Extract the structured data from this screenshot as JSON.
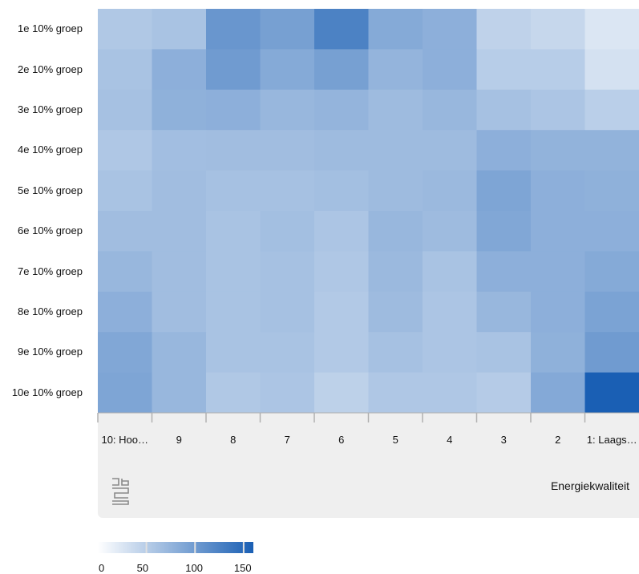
{
  "chart_data": {
    "type": "heatmap",
    "x_categories": [
      "10: Hoo…",
      "9",
      "8",
      "7",
      "6",
      "5",
      "4",
      "3",
      "2",
      "1: Laags…"
    ],
    "y_categories": [
      "1e 10% groep",
      "2e 10% groep",
      "3e 10% groep",
      "4e 10% groep",
      "5e 10% groep",
      "6e 10% groep",
      "7e 10% groep",
      "8e 10% groep",
      "9e 10% groep",
      "10e 10% groep"
    ],
    "xlabel": "Energiekwaliteit",
    "ylabel": "",
    "values": [
      [
        55,
        60,
        105,
        95,
        125,
        85,
        80,
        45,
        40,
        25
      ],
      [
        60,
        80,
        100,
        85,
        95,
        75,
        80,
        50,
        50,
        30
      ],
      [
        62,
        78,
        80,
        72,
        75,
        68,
        72,
        62,
        58,
        48
      ],
      [
        56,
        65,
        66,
        66,
        68,
        68,
        68,
        80,
        76,
        76
      ],
      [
        60,
        66,
        62,
        62,
        64,
        68,
        70,
        90,
        80,
        78
      ],
      [
        66,
        66,
        60,
        64,
        58,
        72,
        68,
        88,
        80,
        80
      ],
      [
        72,
        66,
        60,
        62,
        56,
        70,
        60,
        80,
        80,
        85
      ],
      [
        80,
        66,
        60,
        62,
        54,
        68,
        58,
        72,
        80,
        92
      ],
      [
        88,
        72,
        60,
        60,
        54,
        62,
        58,
        60,
        78,
        100
      ],
      [
        90,
        72,
        55,
        58,
        46,
        56,
        56,
        52,
        86,
        160
      ]
    ],
    "color_scale": {
      "min": 0,
      "max": 160,
      "low_color": "#ffffff",
      "high_color": "#1a5fb4"
    },
    "legend": {
      "ticks": [
        0,
        50,
        100,
        150
      ],
      "position": "bottom-left"
    },
    "grid": false
  },
  "colors": {
    "cell_base": "#2f6fc2",
    "panel_bg": "#efefef"
  },
  "logo": {
    "name": "cbs-logo"
  }
}
